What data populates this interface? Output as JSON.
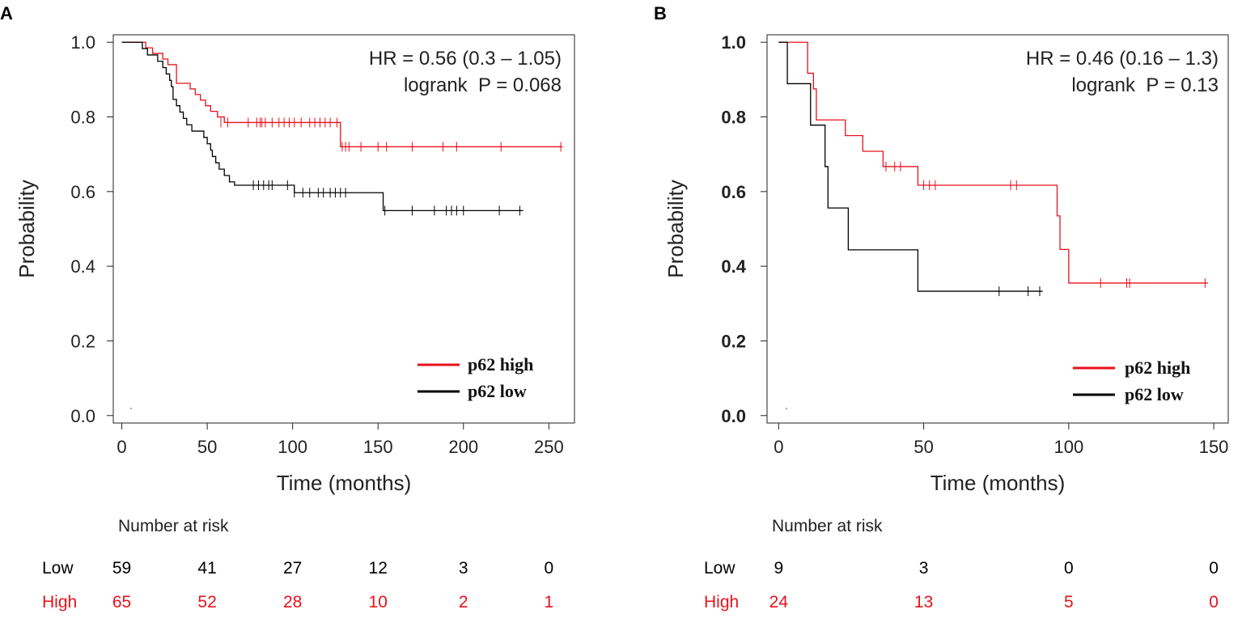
{
  "chart_data": [
    {
      "panel": "A",
      "type": "line",
      "subtype": "kaplan-meier",
      "xlabel": "Time (months)",
      "ylabel": "Probability",
      "xlim": [
        -5,
        265
      ],
      "ylim": [
        -0.02,
        1.02
      ],
      "xticks": [
        0,
        50,
        100,
        150,
        200,
        250
      ],
      "xtick_labels": [
        "0",
        "50",
        "100",
        "150",
        "200",
        "250"
      ],
      "yticks": [
        0.0,
        0.2,
        0.4,
        0.6,
        0.8,
        1.0
      ],
      "ytick_labels": [
        "0.0",
        "0.2",
        "0.4",
        "0.6",
        "0.8",
        "1.0"
      ],
      "bold_ticks": false,
      "stats": {
        "hr": "HR = 0.56 (0.3 – 1.05)",
        "logrank": "logrank  P = 0.068"
      },
      "legend": [
        {
          "name": "p62 high",
          "color": "#e8111b"
        },
        {
          "name": "p62 low",
          "color": "#000000"
        }
      ],
      "series": [
        {
          "name": "p62 high",
          "color": "#e8111b",
          "steps": [
            [
              0,
              1.0
            ],
            [
              14,
              0.985
            ],
            [
              18,
              0.97
            ],
            [
              24,
              0.955
            ],
            [
              27,
              0.94
            ],
            [
              32,
              0.89
            ],
            [
              40,
              0.875
            ],
            [
              43,
              0.86
            ],
            [
              46,
              0.845
            ],
            [
              49,
              0.83
            ],
            [
              52,
              0.815
            ],
            [
              56,
              0.8
            ],
            [
              60,
              0.785
            ],
            [
              128,
              0.72
            ],
            [
              258,
              0.72
            ]
          ],
          "censors": [
            [
              58,
              0.785
            ],
            [
              62,
              0.785
            ],
            [
              74,
              0.785
            ],
            [
              79,
              0.785
            ],
            [
              81,
              0.785
            ],
            [
              82,
              0.785
            ],
            [
              84,
              0.785
            ],
            [
              88,
              0.785
            ],
            [
              92,
              0.785
            ],
            [
              95,
              0.785
            ],
            [
              98,
              0.785
            ],
            [
              101,
              0.785
            ],
            [
              105,
              0.785
            ],
            [
              110,
              0.785
            ],
            [
              113,
              0.785
            ],
            [
              116,
              0.785
            ],
            [
              119,
              0.785
            ],
            [
              122,
              0.785
            ],
            [
              126,
              0.785
            ],
            [
              129,
              0.72
            ],
            [
              131,
              0.72
            ],
            [
              133,
              0.72
            ],
            [
              140,
              0.72
            ],
            [
              150,
              0.72
            ],
            [
              155,
              0.72
            ],
            [
              170,
              0.72
            ],
            [
              188,
              0.72
            ],
            [
              196,
              0.72
            ],
            [
              222,
              0.72
            ],
            [
              257,
              0.72
            ]
          ]
        },
        {
          "name": "p62 low",
          "color": "#000000",
          "steps": [
            [
              0,
              1.0
            ],
            [
              12,
              0.983
            ],
            [
              15,
              0.966
            ],
            [
              21,
              0.949
            ],
            [
              24,
              0.932
            ],
            [
              26,
              0.915
            ],
            [
              28,
              0.898
            ],
            [
              29,
              0.881
            ],
            [
              30,
              0.847
            ],
            [
              32,
              0.83
            ],
            [
              34,
              0.813
            ],
            [
              36,
              0.796
            ],
            [
              38,
              0.779
            ],
            [
              41,
              0.762
            ],
            [
              48,
              0.745
            ],
            [
              50,
              0.728
            ],
            [
              52,
              0.711
            ],
            [
              53,
              0.694
            ],
            [
              55,
              0.677
            ],
            [
              57,
              0.66
            ],
            [
              60,
              0.643
            ],
            [
              63,
              0.626
            ],
            [
              66,
              0.617
            ],
            [
              101,
              0.597
            ],
            [
              153,
              0.549
            ],
            [
              235,
              0.549
            ]
          ],
          "censors": [
            [
              77,
              0.617
            ],
            [
              80,
              0.617
            ],
            [
              83,
              0.617
            ],
            [
              86,
              0.617
            ],
            [
              88,
              0.617
            ],
            [
              97,
              0.617
            ],
            [
              101,
              0.597
            ],
            [
              106,
              0.597
            ],
            [
              110,
              0.597
            ],
            [
              115,
              0.597
            ],
            [
              118,
              0.597
            ],
            [
              122,
              0.597
            ],
            [
              125,
              0.597
            ],
            [
              128,
              0.597
            ],
            [
              131,
              0.597
            ],
            [
              154,
              0.549
            ],
            [
              170,
              0.549
            ],
            [
              183,
              0.549
            ],
            [
              190,
              0.549
            ],
            [
              193,
              0.549
            ],
            [
              196,
              0.549
            ],
            [
              200,
              0.549
            ],
            [
              221,
              0.549
            ],
            [
              233,
              0.549
            ]
          ]
        }
      ],
      "risk_table": {
        "title": "Number at risk",
        "times": [
          0,
          50,
          100,
          150,
          200,
          250
        ],
        "rows": [
          {
            "label": "Low",
            "color": "#000000",
            "values": [
              "59",
              "41",
              "27",
              "12",
              "3",
              "0"
            ]
          },
          {
            "label": "High",
            "color": "#e8111b",
            "values": [
              "65",
              "52",
              "28",
              "10",
              "2",
              "1"
            ]
          }
        ]
      }
    },
    {
      "panel": "B",
      "type": "line",
      "subtype": "kaplan-meier",
      "xlabel": "Time (months)",
      "ylabel": "Probability",
      "xlim": [
        -4,
        155
      ],
      "ylim": [
        -0.02,
        1.02
      ],
      "xticks": [
        0,
        50,
        100,
        150
      ],
      "xtick_labels": [
        "0",
        "50",
        "100",
        "150"
      ],
      "yticks": [
        0.0,
        0.2,
        0.4,
        0.6,
        0.8,
        1.0
      ],
      "ytick_labels": [
        "0.0",
        "0.2",
        "0.4",
        "0.6",
        "0.8",
        "1.0"
      ],
      "bold_ticks": true,
      "stats": {
        "hr": "HR = 0.46 (0.16 – 1.3)",
        "logrank": "logrank  P = 0.13"
      },
      "legend": [
        {
          "name": "p62 high",
          "color": "#e8111b"
        },
        {
          "name": "p62 low",
          "color": "#000000"
        }
      ],
      "series": [
        {
          "name": "p62 high",
          "color": "#e8111b",
          "steps": [
            [
              0,
              1.0
            ],
            [
              10,
              0.917
            ],
            [
              12,
              0.875
            ],
            [
              13,
              0.792
            ],
            [
              23,
              0.75
            ],
            [
              29,
              0.708
            ],
            [
              36,
              0.667
            ],
            [
              48,
              0.617
            ],
            [
              96,
              0.535
            ],
            [
              97,
              0.445
            ],
            [
              100,
              0.355
            ],
            [
              148,
              0.355
            ]
          ],
          "censors": [
            [
              37,
              0.667
            ],
            [
              40,
              0.667
            ],
            [
              42,
              0.667
            ],
            [
              50,
              0.617
            ],
            [
              52,
              0.617
            ],
            [
              54,
              0.617
            ],
            [
              80,
              0.617
            ],
            [
              82,
              0.617
            ],
            [
              111,
              0.355
            ],
            [
              120,
              0.355
            ],
            [
              121,
              0.355
            ],
            [
              147,
              0.355
            ]
          ]
        },
        {
          "name": "p62 low",
          "color": "#000000",
          "steps": [
            [
              0,
              1.0
            ],
            [
              3,
              0.889
            ],
            [
              11,
              0.778
            ],
            [
              16,
              0.667
            ],
            [
              17,
              0.556
            ],
            [
              24,
              0.444
            ],
            [
              48,
              0.333
            ],
            [
              91,
              0.333
            ]
          ],
          "censors": [
            [
              76,
              0.333
            ],
            [
              86,
              0.333
            ],
            [
              90,
              0.333
            ]
          ]
        }
      ],
      "risk_table": {
        "title": "Number at risk",
        "times": [
          0,
          50,
          100,
          150
        ],
        "rows": [
          {
            "label": "Low",
            "color": "#000000",
            "values": [
              "9",
              "3",
              "0",
              "0"
            ]
          },
          {
            "label": "High",
            "color": "#e8111b",
            "values": [
              "24",
              "13",
              "5",
              "0"
            ]
          }
        ]
      }
    }
  ]
}
